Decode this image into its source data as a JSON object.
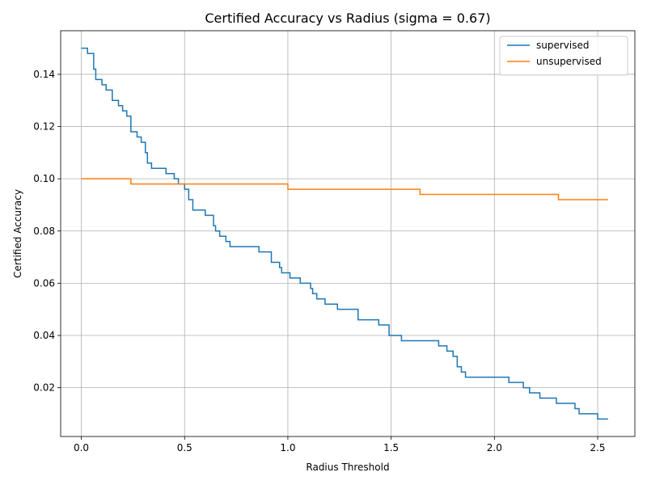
{
  "chart_data": {
    "type": "line",
    "title": "Certified Accuracy vs Radius (sigma = 0.67)",
    "xlabel": "Radius Threshold",
    "ylabel": "Certified Accuracy",
    "xlim": [
      -0.1,
      2.68
    ],
    "ylim": [
      0.0013,
      0.1567
    ],
    "xticks": [
      "0.0",
      "0.5",
      "1.0",
      "1.5",
      "2.0",
      "2.5"
    ],
    "xtick_values": [
      0.0,
      0.5,
      1.0,
      1.5,
      2.0,
      2.5
    ],
    "yticks": [
      "0.02",
      "0.04",
      "0.06",
      "0.08",
      "0.10",
      "0.12",
      "0.14"
    ],
    "ytick_values": [
      0.02,
      0.04,
      0.06,
      0.08,
      0.1,
      0.12,
      0.14
    ],
    "grid": true,
    "legend_position": "top-right",
    "series": [
      {
        "name": "supervised",
        "color": "#1f77b4",
        "step": true,
        "x": [
          0.0,
          0.03,
          0.06,
          0.07,
          0.08,
          0.1,
          0.12,
          0.15,
          0.18,
          0.2,
          0.22,
          0.24,
          0.27,
          0.29,
          0.31,
          0.32,
          0.34,
          0.35,
          0.41,
          0.45,
          0.47,
          0.5,
          0.52,
          0.54,
          0.6,
          0.64,
          0.65,
          0.67,
          0.7,
          0.72,
          0.74,
          0.86,
          0.92,
          0.96,
          0.97,
          0.99,
          1.01,
          1.06,
          1.08,
          1.11,
          1.12,
          1.14,
          1.18,
          1.24,
          1.34,
          1.44,
          1.49,
          1.55,
          1.73,
          1.77,
          1.8,
          1.82,
          1.84,
          1.86,
          2.07,
          2.14,
          2.17,
          2.22,
          2.3,
          2.39,
          2.41,
          2.5,
          2.55
        ],
        "y": [
          0.15,
          0.148,
          0.142,
          0.138,
          0.138,
          0.136,
          0.134,
          0.13,
          0.128,
          0.126,
          0.124,
          0.118,
          0.116,
          0.114,
          0.11,
          0.106,
          0.104,
          0.104,
          0.102,
          0.1,
          0.098,
          0.096,
          0.092,
          0.088,
          0.086,
          0.082,
          0.08,
          0.078,
          0.076,
          0.074,
          0.074,
          0.072,
          0.068,
          0.066,
          0.064,
          0.064,
          0.062,
          0.06,
          0.06,
          0.058,
          0.056,
          0.054,
          0.052,
          0.05,
          0.046,
          0.044,
          0.04,
          0.038,
          0.036,
          0.034,
          0.032,
          0.028,
          0.026,
          0.024,
          0.022,
          0.02,
          0.018,
          0.016,
          0.014,
          0.012,
          0.01,
          0.008,
          0.008
        ]
      },
      {
        "name": "unsupervised",
        "color": "#ff7f0e",
        "step": true,
        "x": [
          0.0,
          0.24,
          1.0,
          1.64,
          2.31,
          2.55
        ],
        "y": [
          0.1,
          0.098,
          0.096,
          0.094,
          0.092,
          0.092
        ]
      }
    ]
  }
}
